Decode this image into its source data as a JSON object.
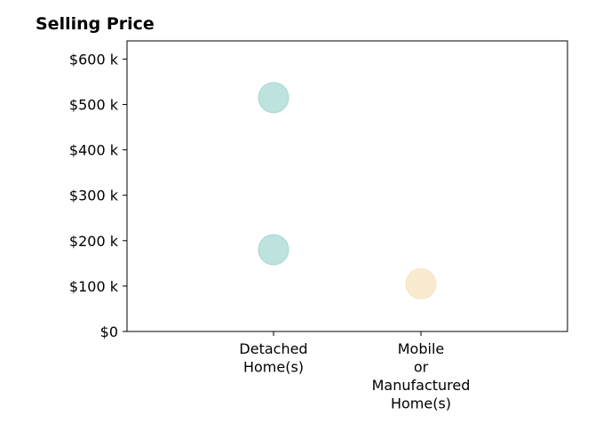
{
  "chart_data": {
    "type": "scatter",
    "title": "Selling Price",
    "xlabel": "",
    "ylabel": "",
    "categories": [
      [
        "Detached",
        "Home(s)"
      ],
      [
        "Mobile",
        "or",
        "Manufactured",
        "Home(s)"
      ]
    ],
    "y_ticks": [
      "$0",
      "$100 k",
      "$200 k",
      "$300 k",
      "$400 k",
      "$500 k",
      "$600 k"
    ],
    "ylim": [
      0,
      640000
    ],
    "grid": false,
    "points": [
      {
        "category": 0,
        "value": 515000,
        "color": "#a8d8d3"
      },
      {
        "category": 0,
        "value": 180000,
        "color": "#a8d8d3"
      },
      {
        "category": 1,
        "value": 105000,
        "color": "#f6e4c0"
      }
    ],
    "colors": {
      "detached": "#a8d8d3",
      "mobile": "#f6e4c0"
    }
  }
}
